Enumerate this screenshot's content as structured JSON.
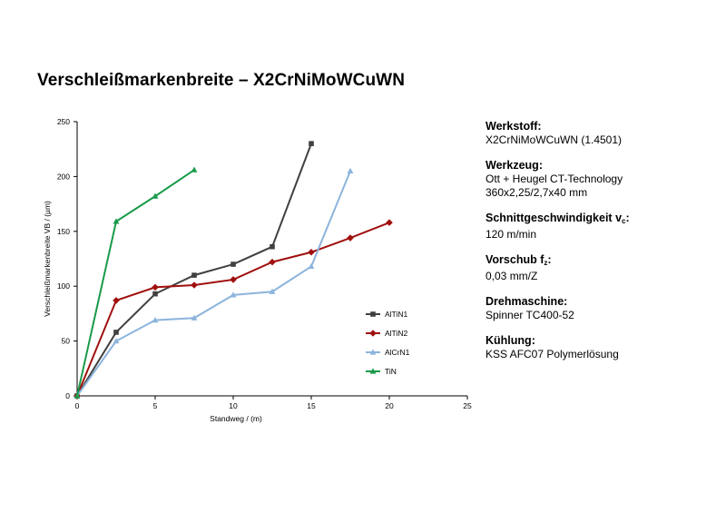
{
  "title": "Verschleißmarkenbreite – X2CrNiMoWCuWN",
  "info": [
    {
      "label": "Werkstoff",
      "sub": "",
      "suffix": ":",
      "lines": [
        "X2CrNiMoWCuWN (1.4501)"
      ]
    },
    {
      "label": "Werkzeug",
      "sub": "",
      "suffix": ":",
      "lines": [
        "Ott + Heugel CT-Technology",
        "360x2,25/2,7x40 mm"
      ]
    },
    {
      "label": "Schnittgeschwindigkeit v",
      "sub": "c",
      "suffix": ":",
      "lines": [
        "120 m/min"
      ]
    },
    {
      "label": "Vorschub f",
      "sub": "z",
      "suffix": ":",
      "lines": [
        "0,03 mm/Z"
      ]
    },
    {
      "label": "Drehmaschine",
      "sub": "",
      "suffix": ":",
      "lines": [
        "Spinner TC400-52"
      ]
    },
    {
      "label": "Kühlung",
      "sub": "",
      "suffix": ":",
      "lines": [
        "KSS AFC07 Polymerlösung"
      ]
    }
  ],
  "chart_data": {
    "type": "line",
    "xlabel": "Standweg / (m)",
    "ylabel": "Verschleißmarkenbreite VB / (µm)",
    "xlim": [
      0,
      25
    ],
    "ylim": [
      0,
      250
    ],
    "xticks": [
      0,
      5,
      10,
      15,
      20,
      25
    ],
    "yticks": [
      0,
      50,
      100,
      150,
      200,
      250
    ],
    "grid": false,
    "legend_position": "right",
    "series": [
      {
        "name": "AlTiN1",
        "color": "#404040",
        "marker": "square",
        "points": [
          [
            0,
            0
          ],
          [
            2.5,
            58
          ],
          [
            5,
            93
          ],
          [
            7.5,
            110
          ],
          [
            10,
            120
          ],
          [
            12.5,
            136
          ],
          [
            15,
            230
          ]
        ]
      },
      {
        "name": "AlTiN2",
        "color": "#a0100f",
        "marker": "diamond",
        "points": [
          [
            0,
            0
          ],
          [
            2.5,
            87
          ],
          [
            5,
            99
          ],
          [
            7.5,
            101
          ],
          [
            10,
            106
          ],
          [
            12.5,
            122
          ],
          [
            15,
            131
          ],
          [
            17.5,
            144
          ],
          [
            20,
            158
          ]
        ]
      },
      {
        "name": "AlCrN1",
        "color": "#8cb4dc",
        "marker": "triangle",
        "points": [
          [
            0,
            0
          ],
          [
            2.5,
            50
          ],
          [
            5,
            69
          ],
          [
            7.5,
            71
          ],
          [
            10,
            92
          ],
          [
            12.5,
            95
          ],
          [
            15,
            118
          ],
          [
            17.5,
            205
          ]
        ]
      },
      {
        "name": "TiN",
        "color": "#1a9a4a",
        "marker": "triangle",
        "points": [
          [
            0,
            0
          ],
          [
            2.5,
            159
          ],
          [
            5,
            182
          ],
          [
            7.5,
            206
          ]
        ]
      }
    ]
  }
}
